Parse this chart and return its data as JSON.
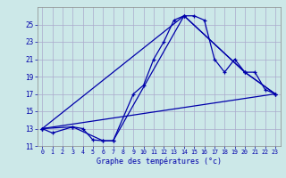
{
  "xlabel": "Graphe des températures (°c)",
  "bg_color": "#cce8e8",
  "grid_color": "#aaaacc",
  "line_color": "#0000aa",
  "xlim": [
    -0.5,
    23.5
  ],
  "ylim": [
    11,
    27
  ],
  "yticks": [
    11,
    13,
    15,
    17,
    19,
    21,
    23,
    25
  ],
  "xticks": [
    0,
    1,
    2,
    3,
    4,
    5,
    6,
    7,
    8,
    9,
    10,
    11,
    12,
    13,
    14,
    15,
    16,
    17,
    18,
    19,
    20,
    21,
    22,
    23
  ],
  "series1_x": [
    0,
    1,
    3,
    4,
    5,
    6,
    7,
    9,
    10,
    11,
    12,
    13,
    14,
    15,
    16,
    17,
    18,
    19,
    20,
    21,
    22,
    23
  ],
  "series1_y": [
    13.0,
    12.5,
    13.2,
    13.0,
    11.7,
    11.6,
    11.6,
    17.0,
    18.0,
    21.0,
    23.0,
    25.5,
    26.0,
    26.0,
    25.5,
    21.0,
    19.5,
    21.0,
    19.5,
    19.5,
    17.5,
    17.0
  ],
  "series2_x": [
    0,
    3,
    6,
    7,
    14,
    20,
    23
  ],
  "series2_y": [
    13.0,
    13.2,
    11.6,
    11.6,
    26.0,
    19.5,
    17.0
  ],
  "series3_x": [
    0,
    23
  ],
  "series3_y": [
    13.0,
    17.0
  ],
  "series4_x": [
    0,
    14,
    20,
    23
  ],
  "series4_y": [
    13.0,
    26.0,
    19.5,
    17.0
  ]
}
